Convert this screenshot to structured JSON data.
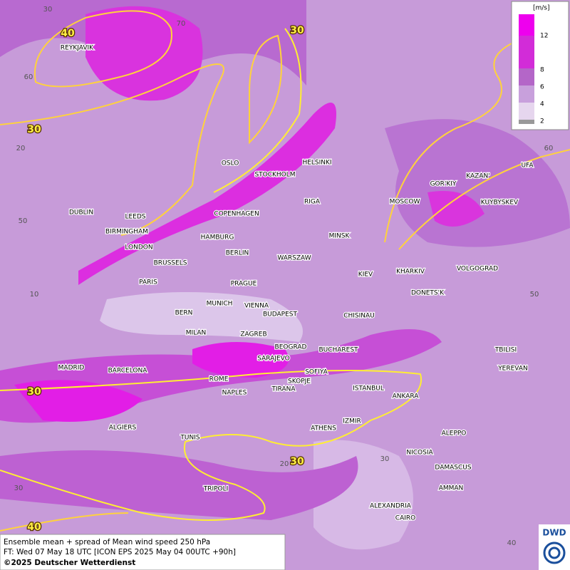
{
  "legend": {
    "unit": "[m/s]",
    "labels": [
      "12",
      "8",
      "6",
      "4",
      "2"
    ]
  },
  "cities": [
    "REYKJAVIK",
    "OSLO",
    "STOCKHOLM",
    "HELSINKI",
    "DUBLIN",
    "LEEDS",
    "BIRMINGHAM",
    "LONDON",
    "COPENHAGEN",
    "HAMBURG",
    "RIGA",
    "MINSK",
    "MOSCOW",
    "GOR'KIY",
    "KAZAN'",
    "UFA",
    "KUYBYSKEV",
    "BERLIN",
    "WARSZAW",
    "BRUSSELS",
    "PARIS",
    "PRAGUE",
    "KIEV",
    "KHARKIV",
    "VOLGOGRAD",
    "DONETS'K",
    "MUNICH",
    "VIENNA",
    "BERN",
    "BUDAPEST",
    "CHISINAU",
    "MILAN",
    "ZAGREB",
    "BEOGRAD",
    "BUCHAREST",
    "TBILISI",
    "SARAJEVO",
    "SOFIYA",
    "YEREVAN",
    "MADRID",
    "BARCELONA",
    "ROME",
    "SKOPJE",
    "NAPLES",
    "TIRANA",
    "ISTANBUL",
    "ANKARA",
    "ALGIERS",
    "IZMIR",
    "ATHENS",
    "TUNIS",
    "ALEPPO",
    "NICOSIA",
    "DAMASCUS",
    "TRIPOLI",
    "AMMAN",
    "ALEXANDRIA",
    "CAIRO"
  ],
  "contour_labels": [
    "40",
    "30",
    "30",
    "30",
    "30",
    "40"
  ],
  "grid_labels": [
    "30",
    "70",
    "60",
    "20",
    "50",
    "10",
    "60",
    "50",
    "40",
    "30",
    "20",
    "30"
  ],
  "footer": {
    "line1": "Ensemble mean + spread of Mean wind speed 250 hPa",
    "line2": "FT: Wed 07 May 18 UTC [ICON EPS 2025 May 04 00UTC +90h]",
    "line3": "©2025 Deutscher Wetterdienst"
  },
  "logo": "DWD"
}
